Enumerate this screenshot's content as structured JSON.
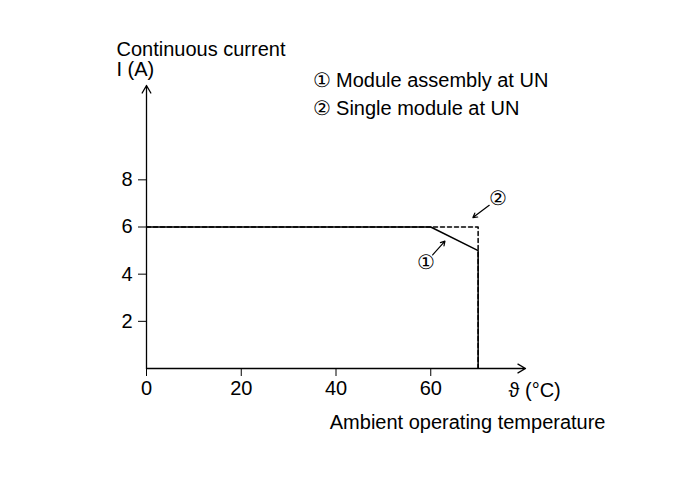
{
  "chart_data": {
    "type": "line",
    "ylabel": "Continuous current\nI (A)",
    "xlabel": "Ambient operating temperature",
    "xunit_label": "ϑ (°C)",
    "xlim": [
      0,
      80
    ],
    "ylim": [
      0,
      12
    ],
    "xticks": [
      0,
      20,
      40,
      60
    ],
    "yticks": [
      2,
      4,
      6,
      8
    ],
    "grid": false,
    "series": [
      {
        "name": "① Module assembly at UN",
        "color": "#000000",
        "line_style": "solid",
        "x": [
          0,
          60,
          70,
          70
        ],
        "values": [
          6,
          6,
          5,
          0
        ]
      },
      {
        "name": "② Single module at UN",
        "color": "#000000",
        "line_style": "dashed",
        "x": [
          0,
          70,
          70
        ],
        "values": [
          6,
          6,
          0
        ]
      }
    ],
    "annotations": [
      {
        "text": "①",
        "x": 59,
        "y": 4.5,
        "target": [
          63,
          5.4
        ]
      },
      {
        "text": "②",
        "x": 74.2,
        "y": 7.2,
        "target": [
          68.9,
          6.4
        ]
      }
    ]
  }
}
